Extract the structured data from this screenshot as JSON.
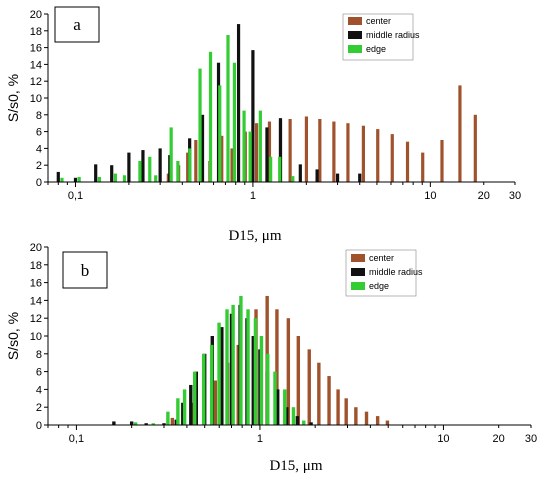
{
  "colors": {
    "center": "#a0522d",
    "middle radius": "#111111",
    "edge": "#33cc33"
  },
  "chart_data": [
    {
      "type": "bar",
      "panel_label": "a",
      "xlabel": "D15, μm",
      "ylabel": "S/s0, %",
      "xscale": "log",
      "xlim": [
        0.07,
        30
      ],
      "ylim": [
        0,
        20
      ],
      "x_tick_labels": [
        {
          "v": 0.1,
          "t": "0,1"
        },
        {
          "v": 1,
          "t": "1"
        },
        {
          "v": 10,
          "t": "10"
        },
        {
          "v": 20,
          "t": "20"
        },
        {
          "v": 30,
          "t": "30"
        }
      ],
      "y_ticks": [
        0,
        2,
        4,
        6,
        8,
        10,
        12,
        14,
        16,
        18,
        20
      ],
      "legend_position": "top-right",
      "series": [
        {
          "name": "center",
          "color": "#a0522d",
          "points": [
            [
              0.35,
              1.0
            ],
            [
              0.4,
              2.0
            ],
            [
              0.45,
              3.5
            ],
            [
              0.5,
              5.0
            ],
            [
              0.6,
              2.5
            ],
            [
              0.7,
              5.5
            ],
            [
              0.8,
              4.0
            ],
            [
              0.95,
              6.0
            ],
            [
              1.1,
              7.0
            ],
            [
              1.3,
              7.2
            ],
            [
              1.5,
              7.3
            ],
            [
              1.7,
              7.5
            ],
            [
              2.1,
              7.8
            ],
            [
              2.5,
              7.5
            ],
            [
              3.0,
              7.2
            ],
            [
              3.6,
              7.0
            ],
            [
              4.4,
              6.7
            ],
            [
              5.3,
              6.3
            ],
            [
              6.4,
              5.7
            ],
            [
              7.8,
              4.8
            ],
            [
              9.5,
              3.5
            ],
            [
              12.2,
              5.0
            ],
            [
              15.4,
              11.5
            ],
            [
              18.8,
              8.0
            ]
          ]
        },
        {
          "name": "middle radius",
          "color": "#111111",
          "points": [
            [
              0.08,
              1.2
            ],
            [
              0.1,
              0.5
            ],
            [
              0.13,
              2.1
            ],
            [
              0.16,
              2.0
            ],
            [
              0.2,
              3.5
            ],
            [
              0.24,
              3.8
            ],
            [
              0.3,
              4.0
            ],
            [
              0.34,
              3.2
            ],
            [
              0.44,
              5.2
            ],
            [
              0.52,
              8.0
            ],
            [
              0.64,
              14.2
            ],
            [
              0.83,
              18.8
            ],
            [
              1.0,
              15.7
            ],
            [
              1.2,
              6.5
            ],
            [
              1.43,
              7.6
            ],
            [
              1.85,
              2.1
            ],
            [
              2.3,
              1.5
            ],
            [
              3.0,
              1.0
            ],
            [
              4.0,
              1.0
            ]
          ]
        },
        {
          "name": "edge",
          "color": "#33cc33",
          "points": [
            [
              0.08,
              0.5
            ],
            [
              0.1,
              0.6
            ],
            [
              0.13,
              0.6
            ],
            [
              0.16,
              1.0
            ],
            [
              0.18,
              0.8
            ],
            [
              0.22,
              2.5
            ],
            [
              0.25,
              3.0
            ],
            [
              0.27,
              0.8
            ],
            [
              0.33,
              6.5
            ],
            [
              0.36,
              2.5
            ],
            [
              0.42,
              4.0
            ],
            [
              0.48,
              13.5
            ],
            [
              0.55,
              15.5
            ],
            [
              0.62,
              11.5
            ],
            [
              0.69,
              17.5
            ],
            [
              0.75,
              14.2
            ],
            [
              0.85,
              8.5
            ],
            [
              0.92,
              6.0
            ],
            [
              1.05,
              8.5
            ],
            [
              1.2,
              3.0
            ],
            [
              1.35,
              3.0
            ],
            [
              1.6,
              0.7
            ]
          ]
        }
      ]
    },
    {
      "type": "bar",
      "panel_label": "b",
      "xlabel": "D15, μm",
      "ylabel": "S/s0, %",
      "xscale": "log",
      "xlim": [
        0.07,
        30
      ],
      "ylim": [
        0,
        20
      ],
      "x_tick_labels": [
        {
          "v": 0.1,
          "t": "0,1"
        },
        {
          "v": 1,
          "t": "1"
        },
        {
          "v": 10,
          "t": "10"
        },
        {
          "v": 20,
          "t": "20"
        },
        {
          "v": 30,
          "t": "30"
        }
      ],
      "y_ticks": [
        0,
        2,
        4,
        6,
        8,
        10,
        12,
        14,
        16,
        18,
        20
      ],
      "legend_position": "top-right",
      "series": [
        {
          "name": "center",
          "color": "#a0522d",
          "points": [
            [
              0.35,
              0.8
            ],
            [
              0.4,
              1.5
            ],
            [
              0.45,
              2.5
            ],
            [
              0.52,
              3.5
            ],
            [
              0.6,
              5.0
            ],
            [
              0.7,
              7.0
            ],
            [
              0.8,
              9.0
            ],
            [
              0.9,
              11.0
            ],
            [
              1.0,
              13.0
            ],
            [
              1.15,
              14.5
            ],
            [
              1.3,
              13.0
            ],
            [
              1.5,
              12.0
            ],
            [
              1.7,
              10.0
            ],
            [
              1.95,
              8.5
            ],
            [
              2.2,
              7.0
            ],
            [
              2.5,
              5.5
            ],
            [
              2.8,
              4.0
            ],
            [
              3.1,
              3.0
            ],
            [
              3.5,
              2.0
            ],
            [
              4.0,
              1.5
            ],
            [
              4.6,
              1.0
            ],
            [
              5.2,
              0.5
            ]
          ]
        },
        {
          "name": "middle radius",
          "color": "#111111",
          "points": [
            [
              0.16,
              0.4
            ],
            [
              0.2,
              0.4
            ],
            [
              0.24,
              0.2
            ],
            [
              0.3,
              0.2
            ],
            [
              0.35,
              0.6
            ],
            [
              0.38,
              2.5
            ],
            [
              0.42,
              4.5
            ],
            [
              0.45,
              6.0
            ],
            [
              0.5,
              8.0
            ],
            [
              0.55,
              10.0
            ],
            [
              0.62,
              11.0
            ],
            [
              0.7,
              12.5
            ],
            [
              0.78,
              13.5
            ],
            [
              0.85,
              12.0
            ],
            [
              0.92,
              10.0
            ],
            [
              1.0,
              8.5
            ],
            [
              1.1,
              6.0
            ],
            [
              1.25,
              4.0
            ],
            [
              1.4,
              2.0
            ],
            [
              1.6,
              1.0
            ],
            [
              1.9,
              0.3
            ]
          ]
        },
        {
          "name": "edge",
          "color": "#33cc33",
          "points": [
            [
              0.2,
              0.3
            ],
            [
              0.25,
              0.2
            ],
            [
              0.3,
              1.5
            ],
            [
              0.34,
              3.0
            ],
            [
              0.37,
              4.0
            ],
            [
              0.42,
              6.0
            ],
            [
              0.47,
              8.0
            ],
            [
              0.52,
              9.0
            ],
            [
              0.57,
              11.5
            ],
            [
              0.63,
              13.0
            ],
            [
              0.68,
              13.5
            ],
            [
              0.75,
              14.5
            ],
            [
              0.82,
              13.0
            ],
            [
              0.9,
              12.0
            ],
            [
              0.97,
              10.0
            ],
            [
              1.05,
              8.0
            ],
            [
              1.15,
              6.0
            ],
            [
              1.3,
              4.0
            ],
            [
              1.45,
              2.0
            ],
            [
              1.65,
              0.5
            ]
          ]
        }
      ]
    }
  ]
}
